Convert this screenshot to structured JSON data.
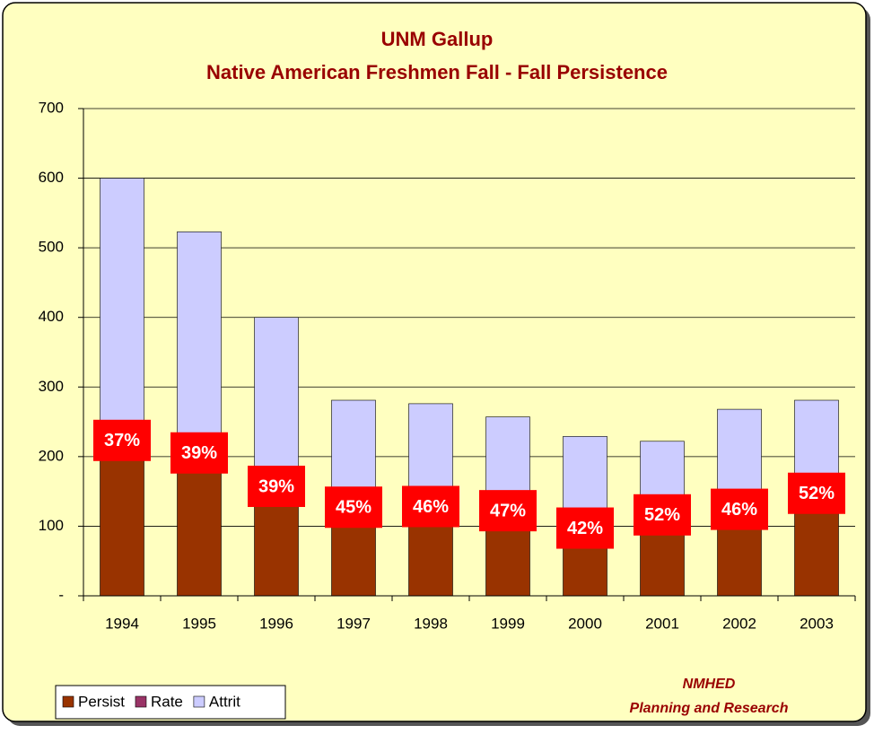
{
  "chart_data": {
    "type": "bar",
    "title": "UNM Gallup",
    "subtitle": "Native American Freshmen Fall - Fall Persistence",
    "categories": [
      "1994",
      "1995",
      "1996",
      "1997",
      "1998",
      "1999",
      "2000",
      "2001",
      "2002",
      "2003"
    ],
    "series": [
      {
        "name": "Persist",
        "color": "#993300",
        "values": [
          222,
          204,
          156,
          126,
          127,
          121,
          96,
          115,
          123,
          146
        ]
      },
      {
        "name": "Rate",
        "color": "#993366",
        "values": [
          37,
          39,
          39,
          45,
          46,
          47,
          42,
          52,
          46,
          52
        ],
        "value_labels": [
          "37%",
          "39%",
          "39%",
          "45%",
          "46%",
          "47%",
          "42%",
          "52%",
          "46%",
          "52%"
        ]
      },
      {
        "name": "Attrit",
        "color": "#CCCCFF",
        "values": [
          378,
          319,
          244,
          155,
          149,
          136,
          133,
          107,
          145,
          135
        ]
      }
    ],
    "stacked": true,
    "ylim": [
      0,
      700
    ],
    "yticks": [
      {
        "value": 0,
        "label": "-"
      },
      100,
      200,
      300,
      400,
      500,
      600,
      700
    ],
    "grid": true,
    "legend": "bottom-left",
    "annotations": [
      "NMHED",
      "Planning and Research"
    ]
  }
}
